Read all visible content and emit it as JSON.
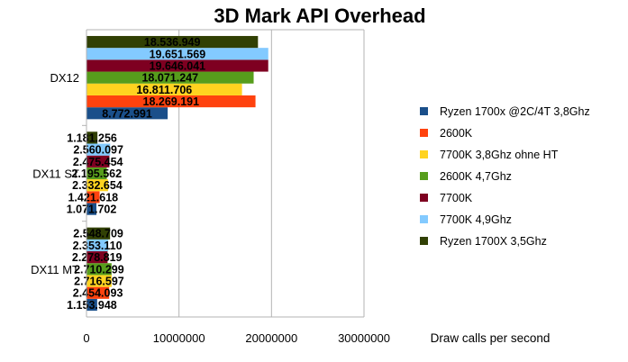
{
  "chart_data": {
    "type": "bar",
    "orientation": "horizontal",
    "title": "3D Mark API Overhead",
    "xlabel": "Draw calls per second",
    "ylabel": "",
    "xlim": [
      0,
      30000000
    ],
    "x_ticks": [
      "0",
      "10000000",
      "20000000",
      "30000000"
    ],
    "grid": true,
    "legend_position": "right",
    "categories": [
      "DX12",
      "DX11 ST",
      "DX11 MT"
    ],
    "series": [
      {
        "name": "Ryzen 1700x @2C/4T 3,8Ghz",
        "color": "#1a4f8a",
        "values": [
          8772991,
          1071702,
          1153948
        ],
        "labels": [
          "8.772.991",
          "1.071.702",
          "1.153.948"
        ]
      },
      {
        "name": "2600K",
        "color": "#ff420e",
        "values": [
          18269191,
          1421618,
          2454093
        ],
        "labels": [
          "18.269.191",
          "1.421.618",
          "2.454.093"
        ]
      },
      {
        "name": "7700K 3,8Ghz ohne HT",
        "color": "#ffd320",
        "values": [
          16811706,
          2332654,
          2716597
        ],
        "labels": [
          "16.811.706",
          "2.332.654",
          "2.716.597"
        ]
      },
      {
        "name": "2600K 4,7Ghz",
        "color": "#579d1c",
        "values": [
          18071247,
          2195562,
          2710299
        ],
        "labels": [
          "18.071.247",
          "2.195.562",
          "2.710.299"
        ]
      },
      {
        "name": "7700K",
        "color": "#7e0021",
        "values": [
          19646041,
          2475454,
          2278819
        ],
        "labels": [
          "19.646.041",
          "2.475.454",
          "2.278.819"
        ]
      },
      {
        "name": "7700K 4,9Ghz",
        "color": "#83caff",
        "values": [
          19651569,
          2560097,
          2353110
        ],
        "labels": [
          "19.651.569",
          "2.560.097",
          "2.353.110"
        ]
      },
      {
        "name": "Ryzen 1700X 3,5Ghz",
        "color": "#314004",
        "values": [
          18536949,
          1181256,
          2548709
        ],
        "labels": [
          "18.536.949",
          "1.181.256",
          "2.548.709"
        ]
      }
    ]
  }
}
